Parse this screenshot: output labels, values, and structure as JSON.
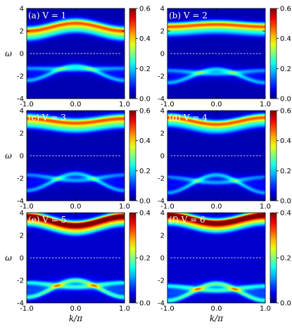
{
  "chart_data": [
    {
      "type": "heatmap",
      "panel_label": "(a) V = 1",
      "V": 1,
      "xlabel": "",
      "ylabel": "ω",
      "xlim": [
        -1.0,
        1.0
      ],
      "ylim": [
        -4,
        4
      ],
      "xticks": [
        "-1.0",
        "0.0",
        "1.0"
      ],
      "yticks": [
        "-4",
        "-2",
        "0",
        "2",
        "4"
      ],
      "colorbar": {
        "range": [
          0.0,
          0.6
        ],
        "ticks": [
          "0.0",
          "0.2",
          "0.4",
          "0.6"
        ]
      },
      "upper_band": {
        "center_k0": 2.6,
        "center_k1": 1.9,
        "width": 0.7
      },
      "lower_band": {
        "outer_k0": -1.1,
        "outer_k1": -2.4,
        "inner_k0": -1.4,
        "inner_k1": -1.3
      },
      "dashed_line_omega": 0
    },
    {
      "type": "heatmap",
      "panel_label": "(b) V = 2",
      "V": 2,
      "xlabel": "",
      "ylabel": "",
      "xlim": [
        -1.0,
        1.0
      ],
      "ylim": [
        -4,
        4
      ],
      "xticks": [
        "-1.0",
        "0.0",
        "1.0"
      ],
      "yticks": [
        "-4",
        "-2",
        "0",
        "2",
        "4"
      ],
      "colorbar": {
        "range": [
          0.0,
          0.6
        ],
        "ticks": [
          "0.0",
          "0.2",
          "0.4",
          "0.6"
        ]
      },
      "upper_band": {
        "center_k0": 2.5,
        "center_k1": 2.3,
        "width": 0.6
      },
      "lower_band": {
        "outer_k0": -1.4,
        "outer_k1": -2.6,
        "inner_k0": -1.8,
        "inner_k1": -1.5
      },
      "dashed_line_omega": 0
    },
    {
      "type": "heatmap",
      "panel_label": "(c) V = 3",
      "V": 3,
      "xlabel": "",
      "ylabel": "ω",
      "xlim": [
        -1.0,
        1.0
      ],
      "ylim": [
        -4,
        4
      ],
      "xticks": [
        "-1.0",
        "0.0",
        "1.0"
      ],
      "yticks": [
        "-4",
        "-2",
        "0",
        "2",
        "4"
      ],
      "colorbar": {
        "range": [
          0.0,
          0.6
        ],
        "ticks": [
          "0.0",
          "0.2",
          "0.4",
          "0.6"
        ]
      },
      "upper_band": {
        "center_k0": 2.8,
        "center_k1": 3.2,
        "width": 0.7
      },
      "lower_band": {
        "outer_k0": -1.6,
        "outer_k1": -3.1,
        "inner_k0": -2.2,
        "inner_k1": -1.7
      },
      "dashed_line_omega": 0
    },
    {
      "type": "heatmap",
      "panel_label": "(d) V = 4",
      "V": 4,
      "xlabel": "",
      "ylabel": "",
      "xlim": [
        -1.0,
        1.0
      ],
      "ylim": [
        -4,
        4
      ],
      "xticks": [
        "-1.0",
        "0.0",
        "1.0"
      ],
      "yticks": [
        "-4",
        "-2",
        "0",
        "2",
        "4"
      ],
      "colorbar": {
        "range": [
          0.0,
          0.6
        ],
        "ticks": [
          "0.0",
          "0.2",
          "0.4",
          "0.6"
        ]
      },
      "upper_band": {
        "center_k0": 2.7,
        "center_k1": 3.3,
        "width": 0.6
      },
      "lower_band": {
        "outer_k0": -1.7,
        "outer_k1": -3.3,
        "inner_k0": -2.4,
        "inner_k1": -1.9
      },
      "dashed_line_omega": 0
    },
    {
      "type": "heatmap",
      "panel_label": "(e) V = 5",
      "V": 5,
      "xlabel": "k/π",
      "ylabel": "ω",
      "xlim": [
        -1.0,
        1.0
      ],
      "ylim": [
        -4,
        4
      ],
      "xticks": [
        "-1.0",
        "0.0",
        "1.0"
      ],
      "yticks": [
        "-4",
        "-2",
        "0",
        "2",
        "4"
      ],
      "colorbar": {
        "range": [
          0.0,
          0.4
        ],
        "ticks": [
          "0.0",
          "0.2",
          "0.4"
        ]
      },
      "upper_band": {
        "center_k0": 2.8,
        "center_k1": 3.6,
        "width": 0.6
      },
      "lower_band": {
        "outer_k0": -2.0,
        "outer_k1": -3.5,
        "inner_k0": -2.6,
        "inner_k1": -2.2
      },
      "dashed_line_omega": 0
    },
    {
      "type": "heatmap",
      "panel_label": "(f) V = 6",
      "V": 6,
      "xlabel": "k/π",
      "ylabel": "",
      "xlim": [
        -1.0,
        1.0
      ],
      "ylim": [
        -4,
        4
      ],
      "xticks": [
        "-1.0",
        "0.0",
        "1.0"
      ],
      "yticks": [
        "-4",
        "-2",
        "0",
        "2",
        "4"
      ],
      "colorbar": {
        "range": [
          0.0,
          0.4
        ],
        "ticks": [
          "0.0",
          "0.2",
          "0.4"
        ]
      },
      "upper_band": {
        "center_k0": 3.0,
        "center_k1": 3.7,
        "width": 0.6
      },
      "lower_band": {
        "outer_k0": -2.3,
        "outer_k1": -3.8,
        "inner_k0": -2.9,
        "inner_k1": -2.5
      },
      "dashed_line_omega": 0
    }
  ],
  "colormap": "jet"
}
